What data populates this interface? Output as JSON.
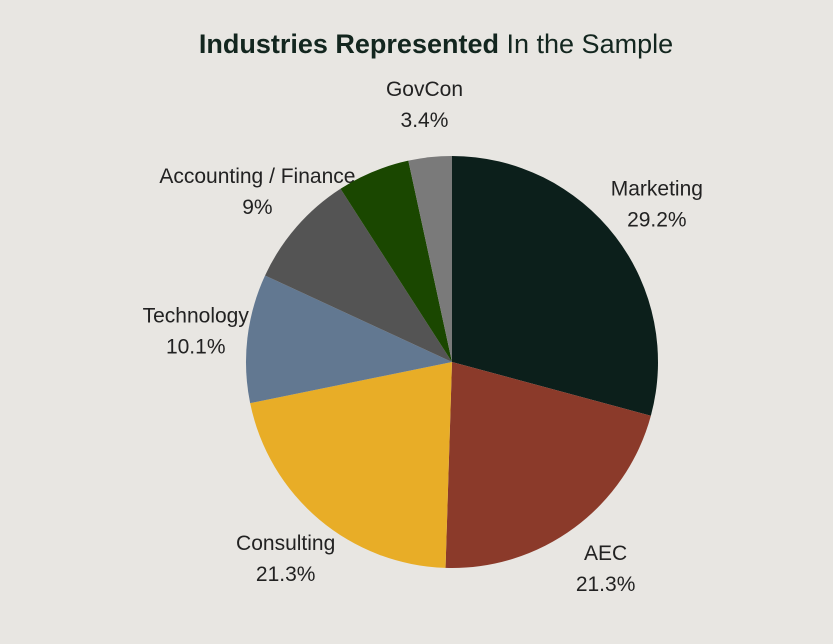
{
  "chart_data": {
    "type": "pie",
    "title": [
      "Industries Represented",
      "In the Sample"
    ],
    "categories": [
      "Marketing",
      "AEC",
      "Consulting",
      "Technology",
      "Accounting / Finance",
      null,
      "GovCon"
    ],
    "values": [
      29.2,
      21.3,
      21.3,
      10.1,
      9,
      5.7,
      3.4
    ],
    "value_labels": [
      "29.2%",
      "21.3%",
      "21.3%",
      "10.1%",
      "9%",
      null,
      "3.4%"
    ],
    "colors": [
      "#0c1f1b",
      "#8b3a2a",
      "#e8ad27",
      "#627891",
      "#545454",
      "#1a4700",
      "#7a7a7a"
    ]
  }
}
